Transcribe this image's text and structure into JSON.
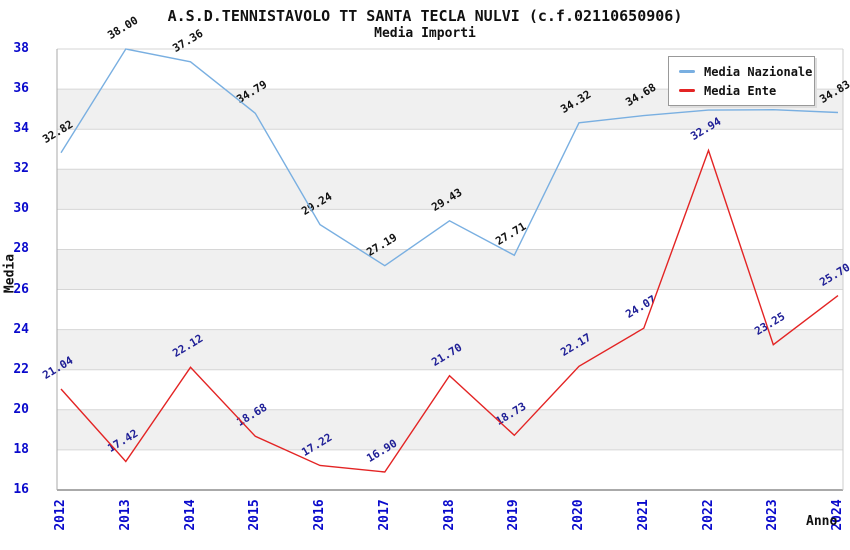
{
  "chart_data": {
    "type": "line",
    "title": "A.S.D.TENNISTAVOLO TT SANTA TECLA NULVI (c.f.02110650906)",
    "subtitle": "Media Importi",
    "xlabel": "Anno",
    "ylabel": "Media",
    "x": [
      "2012",
      "2013",
      "2014",
      "2015",
      "2016",
      "2017",
      "2018",
      "2019",
      "2020",
      "2021",
      "2022",
      "2023",
      "2024"
    ],
    "ylim": [
      16,
      38
    ],
    "y_ticks": [
      38,
      36,
      34,
      32,
      30,
      28,
      26,
      24,
      22,
      20,
      18,
      16
    ],
    "grid": true,
    "band_colors": [
      "#ffffff",
      "#f0f0f0"
    ],
    "gridline_color": "#d6d6d6",
    "axis_tick_color": "#0a0acc",
    "legend_position": "top-right",
    "series": [
      {
        "name": "Media Nazionale",
        "color": "#79afe1",
        "label_color": "#111111",
        "values": [
          32.82,
          38.0,
          37.36,
          34.79,
          29.24,
          27.19,
          29.43,
          27.71,
          34.32,
          34.68,
          34.95,
          34.97,
          34.83
        ]
      },
      {
        "name": "Media Ente",
        "color": "#e32424",
        "label_color": "#1e1e96",
        "values": [
          21.04,
          17.42,
          22.12,
          18.68,
          17.22,
          16.9,
          21.7,
          18.73,
          22.17,
          24.07,
          32.94,
          23.25,
          25.7
        ]
      }
    ]
  }
}
